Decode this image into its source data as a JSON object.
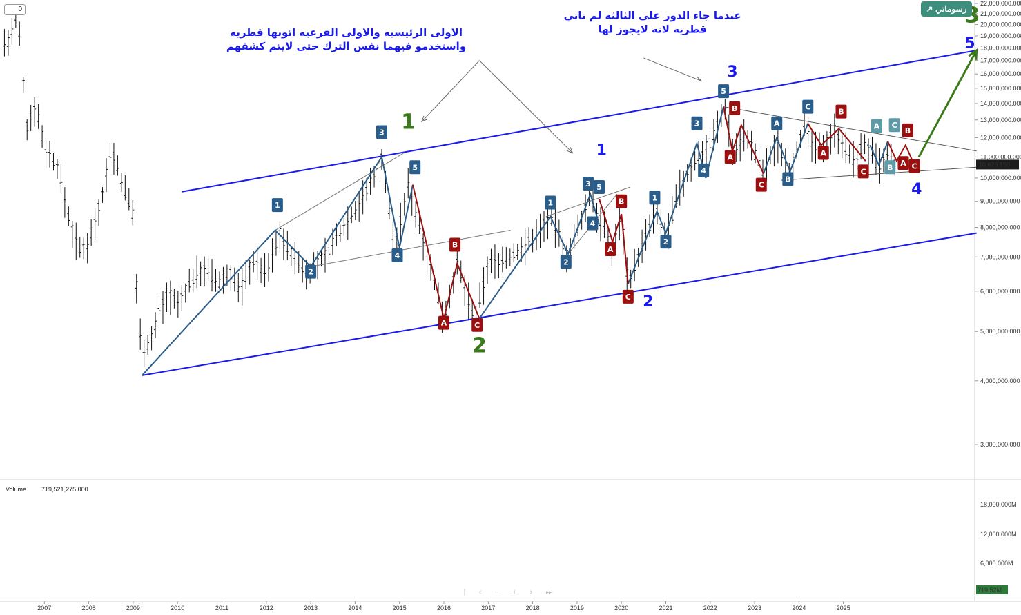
{
  "brand": {
    "label": "رسوماتي"
  },
  "top_left_value": "0",
  "volume": {
    "label": "Volume",
    "value": "719,521,275.000",
    "badge": "719.52M",
    "ticks": [
      "18,000.000M",
      "12,000.000M",
      "6,000.000M"
    ]
  },
  "colors": {
    "up_line": "#2a5d8a",
    "down_line": "#9b0f0f",
    "channel": "#1a1aee",
    "green": "#3a7a1a",
    "label_blue": "#2a5d8a",
    "label_red": "#9b0f0f",
    "label_teal": "#5e9aa8"
  },
  "navigation": {
    "icons": [
      "pipe-icon",
      "chevron-left-icon",
      "minus-icon",
      "plus-icon",
      "chevron-right-icon",
      "skip-icon"
    ],
    "glyphs": [
      "|",
      "‹",
      "−",
      "+",
      "›",
      "⏭"
    ]
  },
  "chart_data": {
    "type": "candlestick",
    "scale": "log",
    "title": "",
    "current_price_label": "10,626.150",
    "ylim": [
      2600000,
      22000000
    ],
    "y_ticks": [
      {
        "v": 22000000,
        "label": "22,000,000.000"
      },
      {
        "v": 21000000,
        "label": "21,000,000.000"
      },
      {
        "v": 20000000,
        "label": "20,000,000.000"
      },
      {
        "v": 19000000,
        "label": "19,000,000.000"
      },
      {
        "v": 18000000,
        "label": "18,000,000.000"
      },
      {
        "v": 17000000,
        "label": "17,000,000.000"
      },
      {
        "v": 16000000,
        "label": "16,000,000.000"
      },
      {
        "v": 15000000,
        "label": "15,000,000.000"
      },
      {
        "v": 14000000,
        "label": "14,000,000.000"
      },
      {
        "v": 13000000,
        "label": "13,000,000.000"
      },
      {
        "v": 12000000,
        "label": "12,000,000.000"
      },
      {
        "v": 11000000,
        "label": "11,000,000.000"
      },
      {
        "v": 10000000,
        "label": "10,000,000.000"
      },
      {
        "v": 9000000,
        "label": "9,000,000.000"
      },
      {
        "v": 8000000,
        "label": "8,000,000.000"
      },
      {
        "v": 7000000,
        "label": "7,000,000.000"
      },
      {
        "v": 6000000,
        "label": "6,000,000.000"
      },
      {
        "v": 5000000,
        "label": "5,000,000.000"
      },
      {
        "v": 4000000,
        "label": "4,000,000.000"
      },
      {
        "v": 3000000,
        "label": "3,000,000.000"
      }
    ],
    "x_ticks": [
      "2007",
      "2008",
      "2009",
      "2010",
      "2011",
      "2012",
      "2013",
      "2014",
      "2015",
      "2016",
      "2017",
      "2018",
      "2019",
      "2020",
      "2021",
      "2022",
      "2023",
      "2024",
      "2025"
    ],
    "price_path": [
      [
        2006.2,
        18500000
      ],
      [
        2006.4,
        21000000
      ],
      [
        2006.6,
        12500000
      ],
      [
        2006.8,
        14000000
      ],
      [
        2007.0,
        11500000
      ],
      [
        2007.3,
        10500000
      ],
      [
        2007.6,
        8000000
      ],
      [
        2007.8,
        7200000
      ],
      [
        2008.0,
        7500000
      ],
      [
        2008.3,
        9200000
      ],
      [
        2008.5,
        11500000
      ],
      [
        2008.8,
        9500000
      ],
      [
        2009.0,
        8500000
      ],
      [
        2009.1,
        5500000
      ],
      [
        2009.2,
        4600000
      ],
      [
        2009.4,
        4800000
      ],
      [
        2009.6,
        5500000
      ],
      [
        2009.8,
        6000000
      ],
      [
        2010.0,
        5600000
      ],
      [
        2010.3,
        6300000
      ],
      [
        2010.6,
        6700000
      ],
      [
        2010.9,
        6200000
      ],
      [
        2011.2,
        6500000
      ],
      [
        2011.4,
        6000000
      ],
      [
        2011.7,
        6900000
      ],
      [
        2012.0,
        6500000
      ],
      [
        2012.3,
        7800000
      ],
      [
        2012.5,
        7200000
      ],
      [
        2012.9,
        6500000
      ],
      [
        2013.3,
        7000000
      ],
      [
        2013.8,
        8200000
      ],
      [
        2014.2,
        9200000
      ],
      [
        2014.6,
        11000000
      ],
      [
        2014.9,
        7300000
      ],
      [
        2015.2,
        9700000
      ],
      [
        2015.6,
        7200000
      ],
      [
        2016.0,
        5300000
      ],
      [
        2016.3,
        6800000
      ],
      [
        2016.7,
        5200000
      ],
      [
        2017.0,
        6800000
      ],
      [
        2017.5,
        7000000
      ],
      [
        2018.0,
        7600000
      ],
      [
        2018.4,
        8400000
      ],
      [
        2018.8,
        7000000
      ],
      [
        2019.3,
        9300000
      ],
      [
        2019.5,
        8300000
      ],
      [
        2019.8,
        7300000
      ],
      [
        2020.0,
        8400000
      ],
      [
        2020.15,
        6200000
      ],
      [
        2020.5,
        7500000
      ],
      [
        2020.8,
        8600000
      ],
      [
        2021.0,
        7600000
      ],
      [
        2021.3,
        9500000
      ],
      [
        2021.7,
        11000000
      ],
      [
        2022.0,
        11700000
      ],
      [
        2022.35,
        13800000
      ],
      [
        2022.5,
        11300000
      ],
      [
        2022.8,
        12200000
      ],
      [
        2023.2,
        10200000
      ],
      [
        2023.5,
        11800000
      ],
      [
        2023.8,
        10300000
      ],
      [
        2024.1,
        12600000
      ],
      [
        2024.4,
        11200000
      ],
      [
        2024.8,
        12400000
      ],
      [
        2025.2,
        10800000
      ],
      [
        2025.5,
        11700000
      ],
      [
        2025.8,
        10500000
      ],
      [
        2026.0,
        11000000
      ],
      [
        2026.2,
        10600000
      ]
    ],
    "channel_upper": [
      [
        2010.1,
        9400000
      ],
      [
        2028.0,
        17800000
      ]
    ],
    "channel_lower": [
      [
        2009.2,
        4100000
      ],
      [
        2028.0,
        7800000
      ]
    ],
    "triangle_upper": [
      [
        2022.3,
        13800000
      ],
      [
        2028.0,
        11300000
      ]
    ],
    "triangle_lower": [
      [
        2023.6,
        9900000
      ],
      [
        2028.0,
        10500000
      ]
    ],
    "minor_lines": [
      [
        [
          2012.2,
          7900000
        ],
        [
          2015.1,
          11200000
        ]
      ],
      [
        [
          2013.0,
          6700000
        ],
        [
          2017.5,
          7900000
        ]
      ],
      [
        [
          2018.3,
          8400000
        ],
        [
          2020.2,
          9600000
        ]
      ],
      [
        [
          2018.8,
          7100000
        ],
        [
          2019.9,
          9300000
        ]
      ]
    ],
    "wave_up": [
      [
        [
          2009.2,
          4100000
        ],
        [
          2012.2,
          7900000
        ],
        [
          2013.0,
          6700000
        ],
        [
          2014.6,
          11000000
        ],
        [
          2015.0,
          7300000
        ],
        [
          2015.3,
          9700000
        ]
      ],
      [
        [
          2016.8,
          5300000
        ],
        [
          2018.4,
          8400000
        ],
        [
          2018.8,
          7100000
        ],
        [
          2019.3,
          9300000
        ],
        [
          2019.5,
          8100000
        ]
      ],
      [
        [
          2020.15,
          6200000
        ],
        [
          2020.8,
          8600000
        ],
        [
          2021.0,
          7800000
        ],
        [
          2021.7,
          11700000
        ],
        [
          2021.9,
          10000000
        ],
        [
          2022.3,
          13800000
        ]
      ],
      [
        [
          2023.2,
          10200000
        ],
        [
          2023.5,
          12000000
        ],
        [
          2023.8,
          10300000
        ],
        [
          2024.2,
          12800000
        ]
      ],
      [
        [
          2025.6,
          11600000
        ],
        [
          2025.8,
          10600000
        ],
        [
          2026.0,
          11800000
        ]
      ]
    ],
    "wave_down": [
      [
        [
          2015.3,
          9700000
        ],
        [
          2016.0,
          5300000
        ],
        [
          2016.3,
          6800000
        ],
        [
          2016.8,
          5300000
        ]
      ],
      [
        [
          2019.5,
          9100000
        ],
        [
          2019.8,
          7500000
        ],
        [
          2020.0,
          8500000
        ],
        [
          2020.15,
          6200000
        ]
      ],
      [
        [
          2022.3,
          13800000
        ],
        [
          2022.5,
          11300000
        ],
        [
          2022.7,
          12700000
        ],
        [
          2023.2,
          10200000
        ]
      ],
      [
        [
          2024.2,
          12800000
        ],
        [
          2024.5,
          11600000
        ],
        [
          2024.9,
          12500000
        ],
        [
          2025.5,
          10800000
        ]
      ],
      [
        [
          2026.0,
          11800000
        ],
        [
          2026.2,
          10800000
        ],
        [
          2026.4,
          11600000
        ],
        [
          2026.6,
          10600000
        ]
      ]
    ],
    "projection_arrow": [
      [
        2026.7,
        11000000
      ],
      [
        2028.0,
        17800000
      ]
    ],
    "wave_labels": [
      {
        "t": "1",
        "x": 2012.25,
        "y": 8850000,
        "c": "label_blue"
      },
      {
        "t": "2",
        "x": 2013.0,
        "y": 6550000,
        "c": "label_blue"
      },
      {
        "t": "3",
        "x": 2014.6,
        "y": 12300000,
        "c": "label_blue"
      },
      {
        "t": "4",
        "x": 2014.95,
        "y": 7050000,
        "c": "label_blue"
      },
      {
        "t": "5",
        "x": 2015.35,
        "y": 10500000,
        "c": "label_blue"
      },
      {
        "t": "A",
        "x": 2016.0,
        "y": 5200000,
        "c": "label_red"
      },
      {
        "t": "B",
        "x": 2016.25,
        "y": 7400000,
        "c": "label_red"
      },
      {
        "t": "C",
        "x": 2016.75,
        "y": 5150000,
        "c": "label_red"
      },
      {
        "t": "1",
        "x": 2018.4,
        "y": 8950000,
        "c": "label_blue"
      },
      {
        "t": "2",
        "x": 2018.75,
        "y": 6850000,
        "c": "label_blue"
      },
      {
        "t": "3",
        "x": 2019.25,
        "y": 9750000,
        "c": "label_blue"
      },
      {
        "t": "4",
        "x": 2019.35,
        "y": 8150000,
        "c": "label_blue"
      },
      {
        "t": "5",
        "x": 2019.5,
        "y": 9600000,
        "c": "label_blue"
      },
      {
        "t": "A",
        "x": 2019.75,
        "y": 7250000,
        "c": "label_red"
      },
      {
        "t": "B",
        "x": 2020.0,
        "y": 9000000,
        "c": "label_red"
      },
      {
        "t": "C",
        "x": 2020.15,
        "y": 5850000,
        "c": "label_red"
      },
      {
        "t": "1",
        "x": 2020.75,
        "y": 9150000,
        "c": "label_blue"
      },
      {
        "t": "2",
        "x": 2021.0,
        "y": 7500000,
        "c": "label_blue"
      },
      {
        "t": "3",
        "x": 2021.7,
        "y": 12800000,
        "c": "label_blue"
      },
      {
        "t": "4",
        "x": 2021.85,
        "y": 10350000,
        "c": "label_blue"
      },
      {
        "t": "5",
        "x": 2022.3,
        "y": 14800000,
        "c": "label_blue"
      },
      {
        "t": "B",
        "x": 2022.55,
        "y": 13700000,
        "c": "label_red"
      },
      {
        "t": "A",
        "x": 2022.45,
        "y": 11000000,
        "c": "label_red"
      },
      {
        "t": "C",
        "x": 2023.15,
        "y": 9700000,
        "c": "label_red"
      },
      {
        "t": "A",
        "x": 2023.5,
        "y": 12800000,
        "c": "label_blue"
      },
      {
        "t": "B",
        "x": 2023.75,
        "y": 9950000,
        "c": "label_blue"
      },
      {
        "t": "C",
        "x": 2024.2,
        "y": 13800000,
        "c": "label_blue"
      },
      {
        "t": "A",
        "x": 2024.55,
        "y": 11200000,
        "c": "label_red"
      },
      {
        "t": "B",
        "x": 2024.95,
        "y": 13500000,
        "c": "label_red"
      },
      {
        "t": "C",
        "x": 2025.45,
        "y": 10300000,
        "c": "label_red"
      },
      {
        "t": "A",
        "x": 2025.75,
        "y": 12650000,
        "c": "label_teal"
      },
      {
        "t": "B",
        "x": 2026.05,
        "y": 10500000,
        "c": "label_teal"
      },
      {
        "t": "C",
        "x": 2026.15,
        "y": 12700000,
        "c": "label_teal"
      },
      {
        "t": "B",
        "x": 2026.45,
        "y": 12400000,
        "c": "label_red"
      },
      {
        "t": "A",
        "x": 2026.35,
        "y": 10700000,
        "c": "label_red"
      },
      {
        "t": "C",
        "x": 2026.6,
        "y": 10550000,
        "c": "label_red"
      }
    ],
    "big_labels": [
      {
        "t": "1",
        "x": 2015.2,
        "y": 12500000,
        "c": "green",
        "s": 30
      },
      {
        "t": "2",
        "x": 2016.8,
        "y": 4550000,
        "c": "green",
        "s": 30
      },
      {
        "t": "1",
        "x": 2019.55,
        "y": 11100000,
        "c": "channel",
        "s": 22
      },
      {
        "t": "2",
        "x": 2020.6,
        "y": 5600000,
        "c": "channel",
        "s": 22
      },
      {
        "t": "3",
        "x": 2022.5,
        "y": 15800000,
        "c": "channel",
        "s": 22
      },
      {
        "t": "4",
        "x": 2026.65,
        "y": 9300000,
        "c": "channel",
        "s": 22
      },
      {
        "t": "3",
        "x": 2027.9,
        "y": 20200000,
        "c": "green",
        "s": 32
      },
      {
        "t": "5",
        "x": 2027.85,
        "y": 18000000,
        "c": "channel",
        "s": 22
      }
    ],
    "annotations": [
      {
        "lines": [
          "الاولى الرئيسيه والاولى الفرعيه اتوبها قطريه",
          "واستخدمو فيهما نفس الترك حتى لايتم كشفهم"
        ],
        "x": 2013.8,
        "y": 19000000
      },
      {
        "lines": [
          "عندما جاء الدور على الثالثه لم تاتي",
          "قطريه لانه لايجوز  لها"
        ],
        "x": 2020.7,
        "y": 20500000
      }
    ],
    "annotation_arrows": [
      [
        [
          2016.8,
          17000000
        ],
        [
          2015.5,
          12900000
        ]
      ],
      [
        [
          2016.8,
          17000000
        ],
        [
          2018.9,
          11200000
        ]
      ],
      [
        [
          2020.5,
          17200000
        ],
        [
          2021.8,
          15500000
        ]
      ]
    ]
  }
}
